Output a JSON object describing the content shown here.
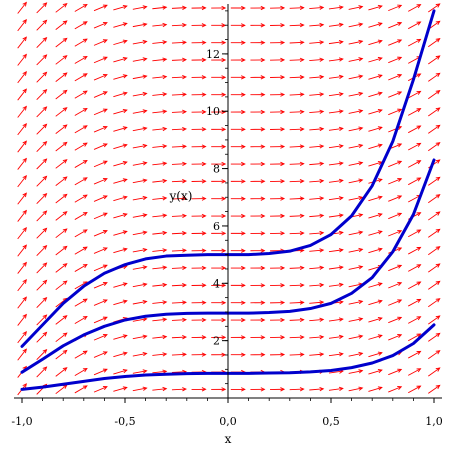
{
  "chart_data": {
    "type": "direction-field",
    "xlabel": "x",
    "ylabel": "y(x)",
    "xlim": [
      -1.0,
      1.0
    ],
    "ylim": [
      0,
      13.6
    ],
    "x_ticks": [
      {
        "value": -1.0,
        "label": "-1,0"
      },
      {
        "value": -0.5,
        "label": "-0,5"
      },
      {
        "value": 0.0,
        "label": "0,0"
      },
      {
        "value": 0.5,
        "label": "0,5"
      },
      {
        "value": 1.0,
        "label": "1,0"
      }
    ],
    "y_ticks": [
      {
        "value": 2,
        "label": "2"
      },
      {
        "value": 4,
        "label": "4"
      },
      {
        "value": 6,
        "label": "6"
      },
      {
        "value": 8,
        "label": "8"
      },
      {
        "value": 10,
        "label": "10"
      },
      {
        "value": 12,
        "label": "12"
      }
    ],
    "field_color": "#ff0000",
    "curve_color": "#0000cc",
    "series": [
      {
        "x": [
          -1.0,
          -0.9,
          -0.8,
          -0.7,
          -0.6,
          -0.5,
          -0.4,
          -0.3,
          -0.2,
          -0.1,
          0.0,
          0.1,
          0.2,
          0.3,
          0.4,
          0.5,
          0.6,
          0.7,
          0.8,
          0.9,
          1.0
        ],
        "y": [
          0.3,
          0.38,
          0.48,
          0.58,
          0.68,
          0.75,
          0.8,
          0.83,
          0.85,
          0.86,
          0.86,
          0.86,
          0.87,
          0.88,
          0.91,
          0.96,
          1.06,
          1.22,
          1.48,
          1.9,
          2.55
        ]
      },
      {
        "x": [
          -1.0,
          -0.9,
          -0.8,
          -0.7,
          -0.6,
          -0.5,
          -0.4,
          -0.3,
          -0.2,
          -0.1,
          0.0,
          0.1,
          0.2,
          0.3,
          0.4,
          0.5,
          0.6,
          0.7,
          0.8,
          0.9,
          1.0
        ],
        "y": [
          0.9,
          1.35,
          1.82,
          2.2,
          2.5,
          2.72,
          2.85,
          2.92,
          2.95,
          2.96,
          2.96,
          2.96,
          2.98,
          3.02,
          3.12,
          3.3,
          3.65,
          4.2,
          5.1,
          6.4,
          8.3
        ]
      },
      {
        "x": [
          -1.0,
          -0.9,
          -0.8,
          -0.7,
          -0.6,
          -0.5,
          -0.4,
          -0.3,
          -0.2,
          -0.1,
          0.0,
          0.1,
          0.2,
          0.3,
          0.4,
          0.5,
          0.6,
          0.7,
          0.8,
          0.9,
          1.0
        ],
        "y": [
          1.8,
          2.55,
          3.3,
          3.9,
          4.35,
          4.65,
          4.85,
          4.95,
          4.98,
          5.0,
          5.0,
          5.0,
          5.04,
          5.12,
          5.32,
          5.7,
          6.35,
          7.4,
          8.95,
          11.1,
          13.5
        ]
      }
    ]
  }
}
